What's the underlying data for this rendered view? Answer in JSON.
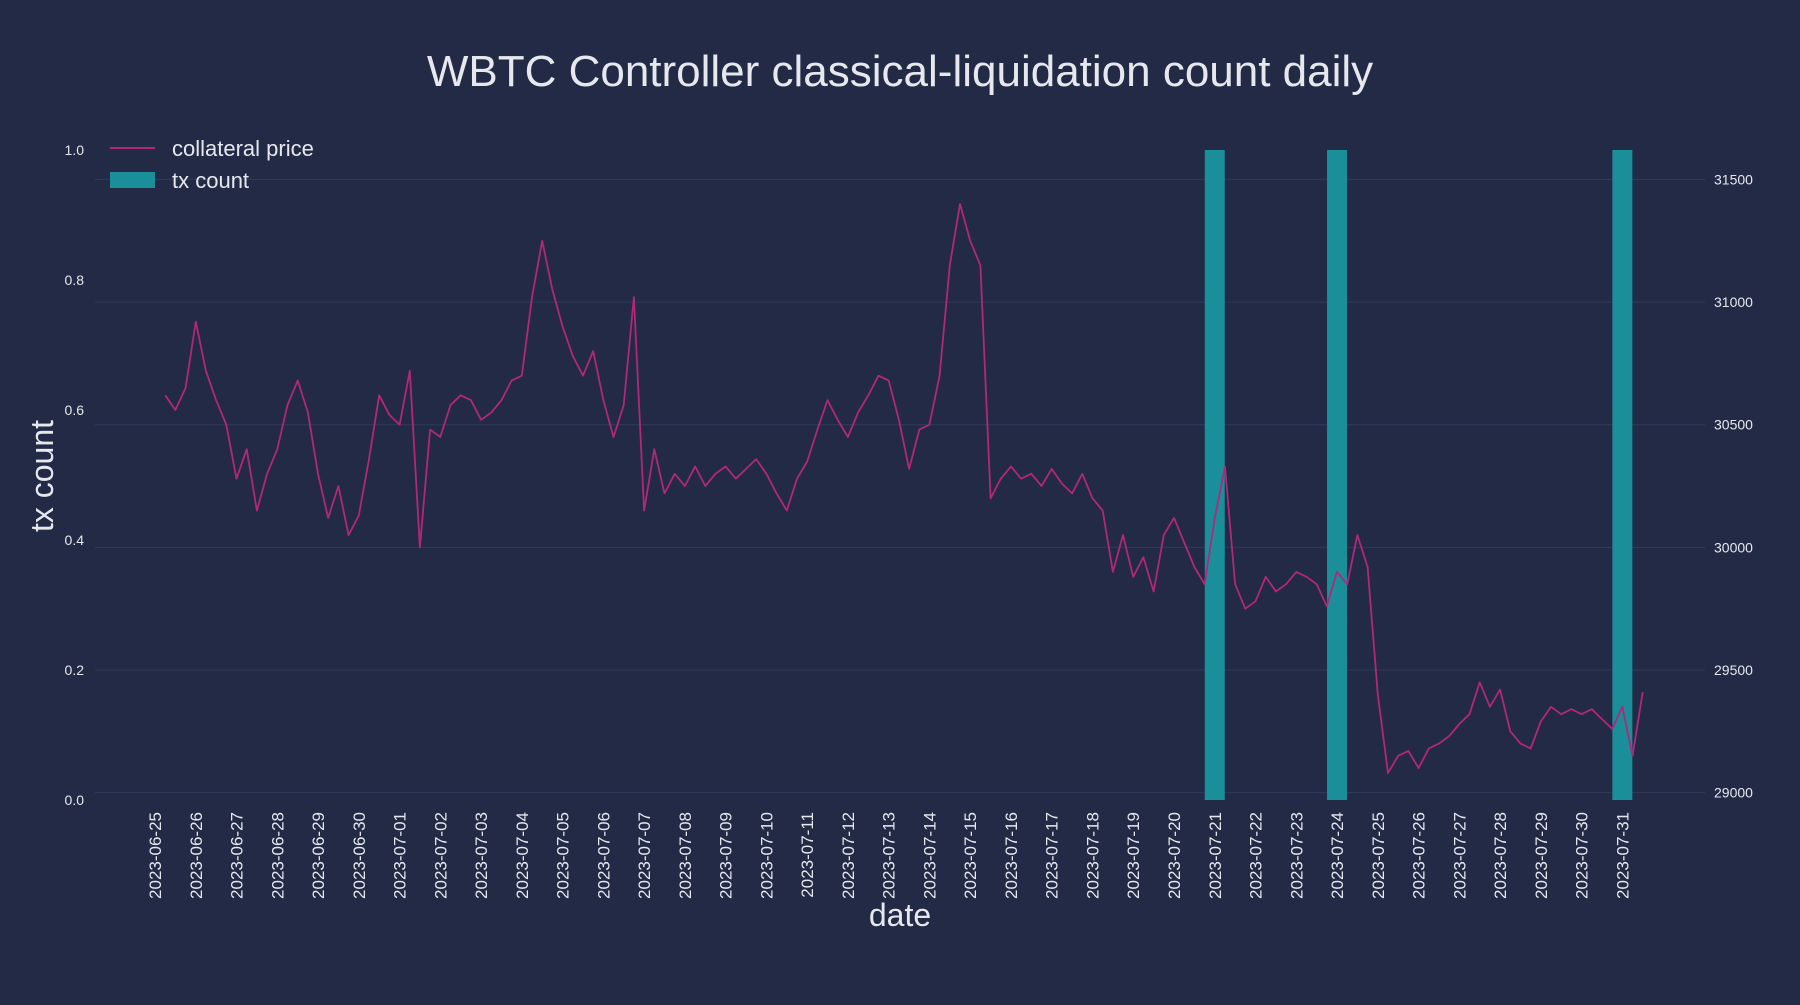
{
  "chart_data": {
    "type": "bar+line",
    "title": "WBTC Controller classical-liquidation count daily",
    "xlabel": "date",
    "ylabel": "tx count",
    "ylabel_right": "",
    "grid": true,
    "legend_placement": "top-left",
    "colors": {
      "background": "#222a45",
      "bars": "#1a8f9a",
      "line": "#b12878",
      "grid": "#2f3a5c",
      "text": "#e6e8ee"
    },
    "categories": [
      "2023-06-25",
      "2023-06-26",
      "2023-06-27",
      "2023-06-28",
      "2023-06-29",
      "2023-06-30",
      "2023-07-01",
      "2023-07-02",
      "2023-07-03",
      "2023-07-04",
      "2023-07-05",
      "2023-07-06",
      "2023-07-07",
      "2023-07-08",
      "2023-07-09",
      "2023-07-10",
      "2023-07-11",
      "2023-07-12",
      "2023-07-13",
      "2023-07-14",
      "2023-07-15",
      "2023-07-16",
      "2023-07-17",
      "2023-07-18",
      "2023-07-19",
      "2023-07-20",
      "2023-07-21",
      "2023-07-22",
      "2023-07-23",
      "2023-07-24",
      "2023-07-25",
      "2023-07-26",
      "2023-07-27",
      "2023-07-28",
      "2023-07-29",
      "2023-07-30",
      "2023-07-31"
    ],
    "y_left": {
      "range": [
        0,
        1.0
      ],
      "ticks": [
        0.0,
        0.2,
        0.4,
        0.6,
        0.8,
        1.0
      ],
      "tick_labels": [
        "0.0",
        "0.2",
        "0.4",
        "0.6",
        "0.8",
        "1.0"
      ]
    },
    "y_right": {
      "range": [
        28970,
        31620
      ],
      "ticks": [
        29000,
        29500,
        30000,
        30500,
        31000,
        31500
      ],
      "tick_labels": [
        "29000",
        "29500",
        "30000",
        "30500",
        "31000",
        "31500"
      ]
    },
    "series": [
      {
        "name": "tx count",
        "type": "bar",
        "axis": "left",
        "color": "#1a8f9a",
        "x": [
          "2023-07-21",
          "2023-07-24",
          "2023-07-31"
        ],
        "values": [
          1,
          1,
          1
        ]
      },
      {
        "name": "collateral price",
        "type": "line",
        "axis": "right",
        "color": "#b12878",
        "x": [
          "2023-06-25 06:00",
          "2023-06-25 12:00",
          "2023-06-25 18:00",
          "2023-06-26 00:00",
          "2023-06-26 06:00",
          "2023-06-26 12:00",
          "2023-06-26 18:00",
          "2023-06-27 00:00",
          "2023-06-27 06:00",
          "2023-06-27 12:00",
          "2023-06-27 18:00",
          "2023-06-28 00:00",
          "2023-06-28 06:00",
          "2023-06-28 12:00",
          "2023-06-28 18:00",
          "2023-06-29 00:00",
          "2023-06-29 06:00",
          "2023-06-29 12:00",
          "2023-06-29 18:00",
          "2023-06-30 00:00",
          "2023-06-30 06:00",
          "2023-06-30 12:00",
          "2023-06-30 18:00",
          "2023-07-01 00:00",
          "2023-07-01 06:00",
          "2023-07-01 12:00",
          "2023-07-01 18:00",
          "2023-07-02 00:00",
          "2023-07-02 06:00",
          "2023-07-02 12:00",
          "2023-07-02 18:00",
          "2023-07-03 00:00",
          "2023-07-03 06:00",
          "2023-07-03 12:00",
          "2023-07-03 18:00",
          "2023-07-04 00:00",
          "2023-07-04 06:00",
          "2023-07-04 12:00",
          "2023-07-04 18:00",
          "2023-07-05 00:00",
          "2023-07-05 06:00",
          "2023-07-05 12:00",
          "2023-07-05 18:00",
          "2023-07-06 00:00",
          "2023-07-06 06:00",
          "2023-07-06 12:00",
          "2023-07-06 18:00",
          "2023-07-07 00:00",
          "2023-07-07 06:00",
          "2023-07-07 12:00",
          "2023-07-07 18:00",
          "2023-07-08 00:00",
          "2023-07-08 06:00",
          "2023-07-08 12:00",
          "2023-07-08 18:00",
          "2023-07-09 00:00",
          "2023-07-09 06:00",
          "2023-07-09 12:00",
          "2023-07-09 18:00",
          "2023-07-10 00:00",
          "2023-07-10 06:00",
          "2023-07-10 12:00",
          "2023-07-10 18:00",
          "2023-07-11 00:00",
          "2023-07-11 06:00",
          "2023-07-11 12:00",
          "2023-07-11 18:00",
          "2023-07-12 00:00",
          "2023-07-12 06:00",
          "2023-07-12 12:00",
          "2023-07-12 18:00",
          "2023-07-13 00:00",
          "2023-07-13 06:00",
          "2023-07-13 12:00",
          "2023-07-13 18:00",
          "2023-07-14 00:00",
          "2023-07-14 06:00",
          "2023-07-14 12:00",
          "2023-07-14 18:00",
          "2023-07-15 00:00",
          "2023-07-15 06:00",
          "2023-07-15 12:00",
          "2023-07-15 18:00",
          "2023-07-16 00:00",
          "2023-07-16 06:00",
          "2023-07-16 12:00",
          "2023-07-16 18:00",
          "2023-07-17 00:00",
          "2023-07-17 06:00",
          "2023-07-17 12:00",
          "2023-07-17 18:00",
          "2023-07-18 00:00",
          "2023-07-18 06:00",
          "2023-07-18 12:00",
          "2023-07-18 18:00",
          "2023-07-19 00:00",
          "2023-07-19 06:00",
          "2023-07-19 12:00",
          "2023-07-19 18:00",
          "2023-07-20 00:00",
          "2023-07-20 06:00",
          "2023-07-20 12:00",
          "2023-07-20 18:00",
          "2023-07-21 00:00",
          "2023-07-21 06:00",
          "2023-07-21 12:00",
          "2023-07-21 18:00",
          "2023-07-22 00:00",
          "2023-07-22 06:00",
          "2023-07-22 12:00",
          "2023-07-22 18:00",
          "2023-07-23 00:00",
          "2023-07-23 06:00",
          "2023-07-23 12:00",
          "2023-07-23 18:00",
          "2023-07-24 00:00",
          "2023-07-24 06:00",
          "2023-07-24 12:00",
          "2023-07-24 18:00",
          "2023-07-25 00:00",
          "2023-07-25 06:00",
          "2023-07-25 12:00",
          "2023-07-25 18:00",
          "2023-07-26 00:00",
          "2023-07-26 06:00",
          "2023-07-26 12:00",
          "2023-07-26 18:00",
          "2023-07-27 00:00",
          "2023-07-27 06:00",
          "2023-07-27 12:00",
          "2023-07-27 18:00",
          "2023-07-28 00:00",
          "2023-07-28 06:00",
          "2023-07-28 12:00",
          "2023-07-28 18:00",
          "2023-07-29 00:00",
          "2023-07-29 06:00",
          "2023-07-29 12:00",
          "2023-07-29 18:00",
          "2023-07-30 00:00",
          "2023-07-30 06:00",
          "2023-07-30 12:00",
          "2023-07-30 18:00",
          "2023-07-31 00:00",
          "2023-07-31 06:00",
          "2023-07-31 12:00"
        ],
        "values": [
          30620,
          30560,
          30650,
          30920,
          30720,
          30600,
          30500,
          30280,
          30400,
          30150,
          30300,
          30400,
          30580,
          30680,
          30550,
          30300,
          30120,
          30250,
          30050,
          30130,
          30360,
          30620,
          30540,
          30500,
          30720,
          30000,
          30480,
          30450,
          30580,
          30620,
          30600,
          30520,
          30550,
          30600,
          30680,
          30700,
          31020,
          31250,
          31050,
          30900,
          30780,
          30700,
          30800,
          30600,
          30450,
          30580,
          31020,
          30150,
          30400,
          30220,
          30300,
          30250,
          30330,
          30250,
          30300,
          30330,
          30280,
          30320,
          30360,
          30300,
          30220,
          30150,
          30280,
          30350,
          30480,
          30600,
          30520,
          30450,
          30550,
          30620,
          30700,
          30680,
          30520,
          30320,
          30480,
          30500,
          30700,
          31150,
          31400,
          31250,
          31150,
          30200,
          30280,
          30330,
          30280,
          30300,
          30250,
          30320,
          30260,
          30220,
          30300,
          30200,
          30150,
          29900,
          30050,
          29880,
          29960,
          29820,
          30050,
          30120,
          30020,
          29920,
          29850,
          30120,
          30330,
          29850,
          29750,
          29780,
          29880,
          29820,
          29850,
          29900,
          29880,
          29850,
          29760,
          29900,
          29850,
          30050,
          29920,
          29400,
          29080,
          29150,
          29170,
          29100,
          29180,
          29200,
          29230,
          29280,
          29320,
          29450,
          29350,
          29420,
          29250,
          29200,
          29180,
          29290,
          29350,
          29320,
          29340,
          29320,
          29340,
          29300,
          29260,
          29350,
          29150,
          29410
        ]
      }
    ]
  }
}
